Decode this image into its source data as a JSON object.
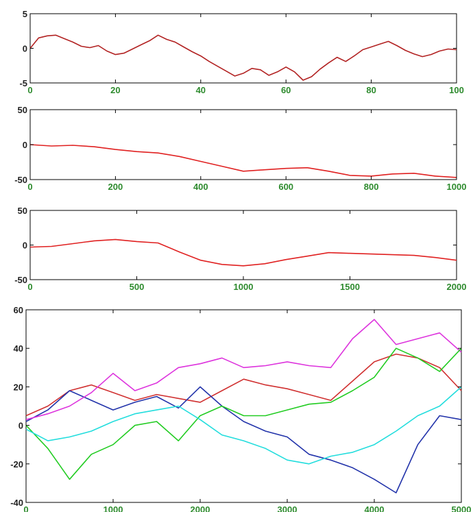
{
  "figure": {
    "background": "#ffffff",
    "xtick_color": "#2e8b2e",
    "ytick_color": "#222222"
  },
  "chart_data": [
    {
      "type": "line",
      "title": "",
      "xlabel": "",
      "ylabel": "",
      "xlim": [
        0,
        100
      ],
      "ylim": [
        -5,
        5
      ],
      "xticks": [
        0,
        20,
        40,
        60,
        80,
        100
      ],
      "yticks": [
        -5,
        0,
        5
      ],
      "grid": false,
      "series": [
        {
          "color": "#b22222",
          "x": [
            0,
            2,
            4,
            6,
            8,
            10,
            12,
            14,
            16,
            18,
            20,
            22,
            24,
            26,
            28,
            30,
            32,
            34,
            36,
            38,
            40,
            42,
            44,
            46,
            48,
            50,
            52,
            54,
            56,
            58,
            60,
            62,
            64,
            66,
            68,
            70,
            72,
            74,
            76,
            78,
            80,
            82,
            84,
            86,
            88,
            90,
            92,
            94,
            96,
            98,
            100
          ],
          "y": [
            0,
            1.5,
            1.8,
            1.9,
            1.4,
            0.9,
            0.3,
            0.1,
            0.4,
            -0.4,
            -0.9,
            -0.7,
            -0.1,
            0.5,
            1.1,
            1.9,
            1.3,
            0.9,
            0.2,
            -0.5,
            -1.1,
            -1.9,
            -2.6,
            -3.3,
            -4.0,
            -3.6,
            -2.9,
            -3.1,
            -3.9,
            -3.4,
            -2.7,
            -3.4,
            -4.6,
            -4.1,
            -3.0,
            -2.1,
            -1.3,
            -1.9,
            -1.1,
            -0.2,
            0.2,
            0.6,
            1.0,
            0.4,
            -0.3,
            -0.8,
            -1.2,
            -0.9,
            -0.4,
            -0.1,
            -0.2
          ]
        }
      ]
    },
    {
      "type": "line",
      "title": "",
      "xlabel": "",
      "ylabel": "",
      "xlim": [
        0,
        1000
      ],
      "ylim": [
        -50,
        50
      ],
      "xticks": [
        0,
        200,
        400,
        600,
        800,
        1000
      ],
      "yticks": [
        -50,
        0,
        50
      ],
      "grid": false,
      "series": [
        {
          "color": "#e02020",
          "x": [
            0,
            50,
            100,
            150,
            200,
            250,
            300,
            350,
            400,
            450,
            500,
            550,
            600,
            650,
            700,
            750,
            800,
            850,
            900,
            950,
            1000
          ],
          "y": [
            0,
            -2,
            -1,
            -3,
            -7,
            -10,
            -12,
            -17,
            -24,
            -31,
            -38,
            -36,
            -34,
            -33,
            -38,
            -44,
            -45,
            -42,
            -41,
            -45,
            -47
          ]
        }
      ]
    },
    {
      "type": "line",
      "title": "",
      "xlabel": "",
      "ylabel": "",
      "xlim": [
        0,
        2000
      ],
      "ylim": [
        -50,
        50
      ],
      "xticks": [
        0,
        500,
        1000,
        1500,
        2000
      ],
      "yticks": [
        -50,
        0,
        50
      ],
      "grid": false,
      "series": [
        {
          "color": "#e02020",
          "x": [
            0,
            100,
            200,
            300,
            400,
            500,
            600,
            700,
            800,
            900,
            1000,
            1100,
            1200,
            1300,
            1400,
            1500,
            1600,
            1700,
            1800,
            1900,
            2000
          ],
          "y": [
            -3,
            -2,
            2,
            6,
            8,
            5,
            3,
            -10,
            -22,
            -28,
            -30,
            -27,
            -21,
            -16,
            -11,
            -12,
            -13,
            -14,
            -15,
            -18,
            -22
          ]
        }
      ]
    },
    {
      "type": "line",
      "title": "",
      "xlabel": "",
      "ylabel": "",
      "xlim": [
        0,
        5000
      ],
      "ylim": [
        -40,
        60
      ],
      "xticks": [
        0,
        1000,
        2000,
        3000,
        4000,
        5000
      ],
      "yticks": [
        -40,
        -20,
        0,
        20,
        40,
        60
      ],
      "grid": false,
      "series": [
        {
          "color": "#d03030",
          "x": [
            0,
            250,
            500,
            750,
            1000,
            1250,
            1500,
            1750,
            2000,
            2250,
            2500,
            2750,
            3000,
            3250,
            3500,
            3750,
            4000,
            4250,
            4500,
            4750,
            5000
          ],
          "y": [
            5,
            10,
            18,
            21,
            17,
            13,
            16,
            14,
            12,
            18,
            24,
            21,
            19,
            16,
            13,
            23,
            33,
            37,
            35,
            30,
            18
          ]
        },
        {
          "color": "#2233aa",
          "x": [
            0,
            250,
            500,
            750,
            1000,
            1250,
            1500,
            1750,
            2000,
            2250,
            2500,
            2750,
            3000,
            3250,
            3500,
            3750,
            4000,
            4250,
            4500,
            4750,
            5000
          ],
          "y": [
            2,
            8,
            18,
            13,
            8,
            12,
            15,
            9,
            20,
            10,
            2,
            -3,
            -6,
            -15,
            -18,
            -22,
            -28,
            -35,
            -10,
            5,
            3
          ]
        },
        {
          "color": "#dd33dd",
          "x": [
            0,
            250,
            500,
            750,
            1000,
            1250,
            1500,
            1750,
            2000,
            2250,
            2500,
            2750,
            3000,
            3250,
            3500,
            3750,
            4000,
            4250,
            4500,
            4750,
            5000
          ],
          "y": [
            3,
            6,
            10,
            17,
            27,
            18,
            22,
            30,
            32,
            35,
            30,
            31,
            33,
            31,
            30,
            45,
            55,
            42,
            45,
            48,
            38
          ]
        },
        {
          "color": "#22cc22",
          "x": [
            0,
            250,
            500,
            750,
            1000,
            1250,
            1500,
            1750,
            2000,
            2250,
            2500,
            2750,
            3000,
            3250,
            3500,
            3750,
            4000,
            4250,
            4500,
            4750,
            5000
          ],
          "y": [
            0,
            -12,
            -28,
            -15,
            -10,
            0,
            2,
            -8,
            5,
            10,
            5,
            5,
            8,
            11,
            12,
            18,
            25,
            40,
            35,
            28,
            40
          ]
        },
        {
          "color": "#22dddd",
          "x": [
            0,
            250,
            500,
            750,
            1000,
            1250,
            1500,
            1750,
            2000,
            2250,
            2500,
            2750,
            3000,
            3250,
            3500,
            3750,
            4000,
            4250,
            4500,
            4750,
            5000
          ],
          "y": [
            -2,
            -8,
            -6,
            -3,
            2,
            6,
            8,
            10,
            3,
            -5,
            -8,
            -12,
            -18,
            -20,
            -16,
            -14,
            -10,
            -3,
            5,
            10,
            20
          ]
        }
      ]
    }
  ]
}
